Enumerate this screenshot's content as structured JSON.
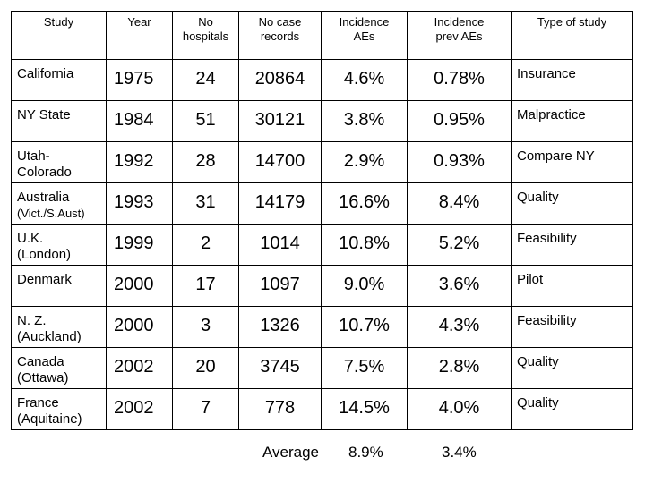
{
  "table": {
    "headers": [
      [
        "Study"
      ],
      [
        "Year"
      ],
      [
        "No",
        "hospitals"
      ],
      [
        "No case",
        "records"
      ],
      [
        "Incidence",
        "AEs"
      ],
      [
        "Incidence",
        "prev AEs"
      ],
      [
        "Type of study"
      ]
    ],
    "rows": [
      [
        [
          "California"
        ],
        "1975",
        "24",
        "20864",
        "4.6%",
        "0.78%",
        "Insurance"
      ],
      [
        [
          "NY State"
        ],
        "1984",
        "51",
        "30121",
        "3.8%",
        "0.95%",
        "Malpractice"
      ],
      [
        [
          "Utah-",
          "Colorado"
        ],
        "1992",
        "28",
        "14700",
        "2.9%",
        "0.93%",
        "Compare NY"
      ],
      [
        [
          "Australia",
          "(Vict./S.Aust)"
        ],
        "1993",
        "31",
        "14179",
        "16.6%",
        "8.4%",
        "Quality"
      ],
      [
        [
          "U.K.",
          "(London)"
        ],
        "1999",
        "2",
        "1014",
        "10.8%",
        "5.2%",
        "Feasibility"
      ],
      [
        [
          "Denmark"
        ],
        "2000",
        "17",
        "1097",
        "9.0%",
        "3.6%",
        "Pilot"
      ],
      [
        [
          "N. Z.",
          "(Auckland)"
        ],
        "2000",
        "3",
        "1326",
        "10.7%",
        "4.3%",
        "Feasibility"
      ],
      [
        [
          "Canada",
          "(Ottawa)"
        ],
        "2002",
        "20",
        "3745",
        "7.5%",
        "2.8%",
        "Quality"
      ],
      [
        [
          "France",
          "(Aquitaine)"
        ],
        "2002",
        "7",
        "778",
        "14.5%",
        "4.0%",
        "Quality"
      ]
    ],
    "average": {
      "label": "Average",
      "incidence": "8.9%",
      "prev": "3.4%"
    }
  }
}
